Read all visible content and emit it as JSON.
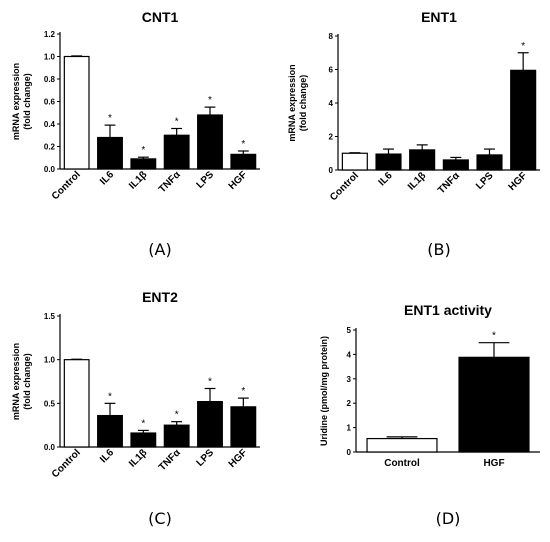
{
  "chart_data": [
    {
      "type": "bar",
      "title": "CNT1",
      "panel_label": "(A)",
      "ylabel": "mRNA expression\n(fold change)",
      "categories": [
        "Control",
        "IL6",
        "IL1β",
        "TNFα",
        "LPS",
        "HGF"
      ],
      "values": [
        1.0,
        0.28,
        0.09,
        0.3,
        0.48,
        0.13
      ],
      "errors": [
        0.005,
        0.11,
        0.015,
        0.06,
        0.07,
        0.03
      ],
      "significance": [
        "",
        "*",
        "*",
        "*",
        "*",
        "*"
      ],
      "fills": [
        "#ffffff",
        "#000000",
        "#000000",
        "#000000",
        "#000000",
        "#000000"
      ],
      "ylim": [
        0,
        1.2
      ],
      "yticks": [
        "0.0",
        "0.2",
        "0.4",
        "0.6",
        "0.8",
        "1.0",
        "1.2"
      ]
    },
    {
      "type": "bar",
      "title": "ENT1",
      "panel_label": "(B)",
      "ylabel": "mRNA expression\n(fold change)",
      "categories": [
        "Control",
        "IL6",
        "IL1β",
        "TNFα",
        "LPS",
        "HGF"
      ],
      "values": [
        1.0,
        0.95,
        1.2,
        0.6,
        0.9,
        5.95
      ],
      "errors": [
        0.03,
        0.3,
        0.3,
        0.15,
        0.35,
        1.05
      ],
      "significance": [
        "",
        "",
        "",
        "",
        "",
        "*"
      ],
      "fills": [
        "#ffffff",
        "#000000",
        "#000000",
        "#000000",
        "#000000",
        "#000000"
      ],
      "ylim": [
        0,
        8
      ],
      "yticks": [
        "0",
        "2",
        "4",
        "6",
        "8"
      ]
    },
    {
      "type": "bar",
      "title": "ENT2",
      "panel_label": "(C)",
      "ylabel": "mRNA expression\n(fold change)",
      "categories": [
        "Control",
        "IL6",
        "IL1β",
        "TNFα",
        "LPS",
        "HGF"
      ],
      "values": [
        1.0,
        0.36,
        0.16,
        0.25,
        0.52,
        0.46
      ],
      "errors": [
        0.005,
        0.14,
        0.03,
        0.04,
        0.15,
        0.1
      ],
      "significance": [
        "",
        "*",
        "*",
        "*",
        "*",
        "*"
      ],
      "fills": [
        "#ffffff",
        "#000000",
        "#000000",
        "#000000",
        "#000000",
        "#000000"
      ],
      "ylim": [
        0,
        1.5
      ],
      "yticks": [
        "0.0",
        "0.5",
        "1.0",
        "1.5"
      ]
    },
    {
      "type": "bar",
      "title": "ENT1 activity",
      "panel_label": "(D)",
      "ylabel": "Uridine (pmol/mg protein)",
      "categories": [
        "Control",
        "HGF"
      ],
      "values": [
        0.55,
        3.88
      ],
      "errors": [
        0.07,
        0.6
      ],
      "significance": [
        "",
        "*"
      ],
      "fills": [
        "#ffffff",
        "#000000"
      ],
      "ylim": [
        0,
        5
      ],
      "yticks": [
        "0",
        "1",
        "2",
        "3",
        "4",
        "5"
      ]
    }
  ]
}
